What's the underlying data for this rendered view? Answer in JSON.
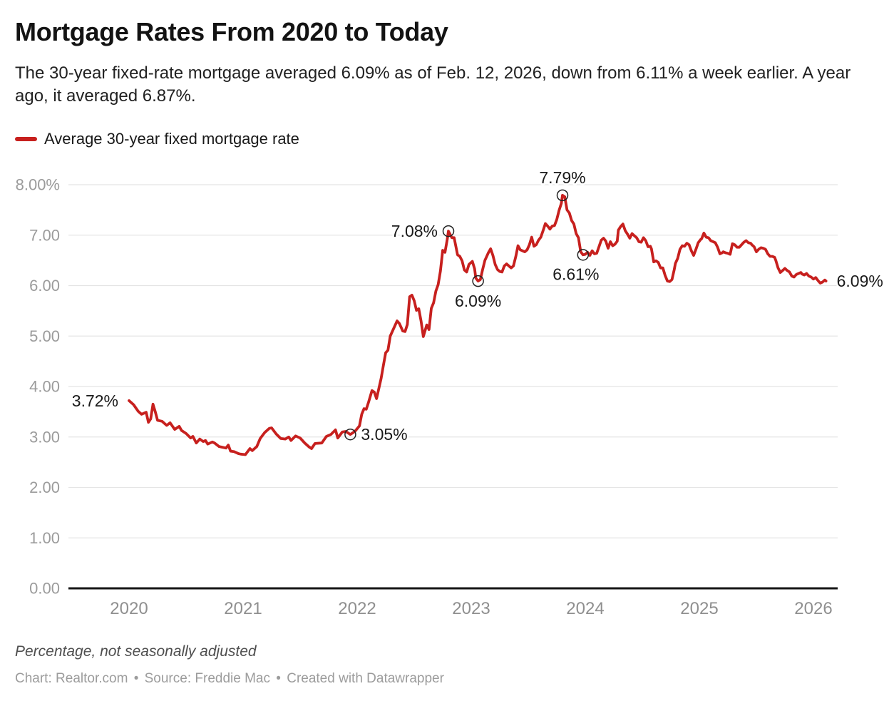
{
  "header": {
    "title": "Mortgage Rates From 2020 to Today",
    "subtitle": "The 30-year fixed-rate mortgage averaged 6.09% as of Feb. 12, 2026, down from 6.11% a week earlier. A year ago, it averaged 6.87%."
  },
  "legend": {
    "label": "Average 30-year fixed mortgage rate",
    "color": "#c7201e"
  },
  "footer": {
    "note": "Percentage, not seasonally adjusted",
    "credit": {
      "chart_label": "Chart:",
      "chart_source": "Realtor.com",
      "separator": "•",
      "source_label": "Source:",
      "source_name": "Freddie Mac",
      "created_label": "Created with",
      "tool_name": "Datawrapper"
    }
  },
  "chart_data": {
    "type": "line",
    "title": "Mortgage Rates From 2020 to Today",
    "xlabel": "",
    "ylabel": "Percentage, not seasonally adjusted",
    "ylim": [
      0,
      8
    ],
    "xlim": [
      2019.47,
      2026.21
    ],
    "grid": true,
    "legend_position": "top-left",
    "line_color": "#c7201e",
    "grid_color": "#e4e4e4",
    "axis_label_color": "#9b9b9b",
    "y_ticks": [
      {
        "v": 8,
        "label": "8.00%"
      },
      {
        "v": 7,
        "label": "7.00"
      },
      {
        "v": 6,
        "label": "6.00"
      },
      {
        "v": 5,
        "label": "5.00"
      },
      {
        "v": 4,
        "label": "4.00"
      },
      {
        "v": 3,
        "label": "3.00"
      },
      {
        "v": 2,
        "label": "2.00"
      },
      {
        "v": 1,
        "label": "1.00"
      },
      {
        "v": 0,
        "label": "0.00"
      }
    ],
    "x_ticks": [
      {
        "v": 2020,
        "label": "2020"
      },
      {
        "v": 2021,
        "label": "2021"
      },
      {
        "v": 2022,
        "label": "2022"
      },
      {
        "v": 2023,
        "label": "2023"
      },
      {
        "v": 2024,
        "label": "2024"
      },
      {
        "v": 2025,
        "label": "2025"
      },
      {
        "v": 2026,
        "label": "2026"
      }
    ],
    "annotations": [
      {
        "t": 2020.0,
        "v": 3.72,
        "label": "3.72%",
        "placement": "left",
        "circle": false
      },
      {
        "t": 2021.94,
        "v": 3.05,
        "label": "3.05%",
        "placement": "right",
        "circle": true
      },
      {
        "t": 2022.8,
        "v": 7.08,
        "label": "7.08%",
        "placement": "left",
        "circle": true
      },
      {
        "t": 2023.06,
        "v": 6.09,
        "label": "6.09%",
        "placement": "below",
        "circle": true
      },
      {
        "t": 2023.8,
        "v": 7.79,
        "label": "7.79%",
        "placement": "above",
        "circle": true
      },
      {
        "t": 2023.98,
        "v": 6.61,
        "label": "6.61%",
        "placement": "below-left",
        "circle": true
      },
      {
        "t": 2026.11,
        "v": 6.09,
        "label": "6.09%",
        "placement": "right",
        "circle": false
      }
    ],
    "series": [
      {
        "name": "Average 30-year fixed mortgage rate",
        "color": "#c7201e",
        "points": [
          [
            2020.0,
            3.72
          ],
          [
            2020.04,
            3.64
          ],
          [
            2020.08,
            3.51
          ],
          [
            2020.11,
            3.45
          ],
          [
            2020.15,
            3.49
          ],
          [
            2020.17,
            3.29
          ],
          [
            2020.19,
            3.36
          ],
          [
            2020.21,
            3.65
          ],
          [
            2020.23,
            3.5
          ],
          [
            2020.25,
            3.33
          ],
          [
            2020.29,
            3.31
          ],
          [
            2020.33,
            3.23
          ],
          [
            2020.36,
            3.28
          ],
          [
            2020.4,
            3.15
          ],
          [
            2020.44,
            3.21
          ],
          [
            2020.46,
            3.13
          ],
          [
            2020.5,
            3.07
          ],
          [
            2020.54,
            2.98
          ],
          [
            2020.56,
            3.01
          ],
          [
            2020.59,
            2.88
          ],
          [
            2020.62,
            2.96
          ],
          [
            2020.65,
            2.91
          ],
          [
            2020.67,
            2.93
          ],
          [
            2020.69,
            2.86
          ],
          [
            2020.73,
            2.9
          ],
          [
            2020.75,
            2.88
          ],
          [
            2020.79,
            2.81
          ],
          [
            2020.81,
            2.8
          ],
          [
            2020.85,
            2.78
          ],
          [
            2020.87,
            2.84
          ],
          [
            2020.89,
            2.72
          ],
          [
            2020.92,
            2.71
          ],
          [
            2020.96,
            2.67
          ],
          [
            2020.98,
            2.66
          ],
          [
            2021.02,
            2.65
          ],
          [
            2021.06,
            2.77
          ],
          [
            2021.08,
            2.73
          ],
          [
            2021.12,
            2.81
          ],
          [
            2021.15,
            2.97
          ],
          [
            2021.19,
            3.09
          ],
          [
            2021.23,
            3.17
          ],
          [
            2021.25,
            3.18
          ],
          [
            2021.29,
            3.06
          ],
          [
            2021.33,
            2.97
          ],
          [
            2021.37,
            2.96
          ],
          [
            2021.4,
            3.0
          ],
          [
            2021.42,
            2.93
          ],
          [
            2021.46,
            3.02
          ],
          [
            2021.5,
            2.98
          ],
          [
            2021.54,
            2.88
          ],
          [
            2021.58,
            2.8
          ],
          [
            2021.6,
            2.77
          ],
          [
            2021.63,
            2.87
          ],
          [
            2021.69,
            2.88
          ],
          [
            2021.73,
            3.01
          ],
          [
            2021.77,
            3.05
          ],
          [
            2021.81,
            3.14
          ],
          [
            2021.83,
            2.98
          ],
          [
            2021.87,
            3.1
          ],
          [
            2021.9,
            3.11
          ],
          [
            2021.94,
            3.05
          ],
          [
            2021.98,
            3.11
          ],
          [
            2022.02,
            3.22
          ],
          [
            2022.04,
            3.45
          ],
          [
            2022.06,
            3.56
          ],
          [
            2022.08,
            3.55
          ],
          [
            2022.1,
            3.69
          ],
          [
            2022.13,
            3.92
          ],
          [
            2022.15,
            3.89
          ],
          [
            2022.17,
            3.76
          ],
          [
            2022.21,
            4.16
          ],
          [
            2022.23,
            4.42
          ],
          [
            2022.25,
            4.67
          ],
          [
            2022.27,
            4.72
          ],
          [
            2022.29,
            5.0
          ],
          [
            2022.31,
            5.1
          ],
          [
            2022.35,
            5.3
          ],
          [
            2022.37,
            5.25
          ],
          [
            2022.4,
            5.1
          ],
          [
            2022.42,
            5.09
          ],
          [
            2022.44,
            5.23
          ],
          [
            2022.46,
            5.78
          ],
          [
            2022.48,
            5.81
          ],
          [
            2022.5,
            5.7
          ],
          [
            2022.52,
            5.51
          ],
          [
            2022.54,
            5.54
          ],
          [
            2022.56,
            5.3
          ],
          [
            2022.58,
            4.99
          ],
          [
            2022.61,
            5.22
          ],
          [
            2022.63,
            5.13
          ],
          [
            2022.65,
            5.55
          ],
          [
            2022.67,
            5.66
          ],
          [
            2022.69,
            5.89
          ],
          [
            2022.71,
            6.02
          ],
          [
            2022.73,
            6.29
          ],
          [
            2022.75,
            6.7
          ],
          [
            2022.77,
            6.66
          ],
          [
            2022.79,
            6.92
          ],
          [
            2022.8,
            7.08
          ],
          [
            2022.83,
            6.95
          ],
          [
            2022.85,
            6.95
          ],
          [
            2022.88,
            6.61
          ],
          [
            2022.9,
            6.58
          ],
          [
            2022.92,
            6.49
          ],
          [
            2022.94,
            6.31
          ],
          [
            2022.96,
            6.27
          ],
          [
            2022.98,
            6.42
          ],
          [
            2023.01,
            6.48
          ],
          [
            2023.03,
            6.33
          ],
          [
            2023.04,
            6.15
          ],
          [
            2023.06,
            6.09
          ],
          [
            2023.08,
            6.12
          ],
          [
            2023.1,
            6.32
          ],
          [
            2023.12,
            6.5
          ],
          [
            2023.15,
            6.65
          ],
          [
            2023.17,
            6.73
          ],
          [
            2023.19,
            6.6
          ],
          [
            2023.21,
            6.42
          ],
          [
            2023.23,
            6.32
          ],
          [
            2023.25,
            6.28
          ],
          [
            2023.27,
            6.27
          ],
          [
            2023.29,
            6.39
          ],
          [
            2023.31,
            6.43
          ],
          [
            2023.33,
            6.39
          ],
          [
            2023.35,
            6.35
          ],
          [
            2023.37,
            6.39
          ],
          [
            2023.39,
            6.57
          ],
          [
            2023.41,
            6.79
          ],
          [
            2023.43,
            6.71
          ],
          [
            2023.45,
            6.69
          ],
          [
            2023.47,
            6.67
          ],
          [
            2023.49,
            6.71
          ],
          [
            2023.51,
            6.81
          ],
          [
            2023.53,
            6.96
          ],
          [
            2023.55,
            6.78
          ],
          [
            2023.57,
            6.81
          ],
          [
            2023.59,
            6.9
          ],
          [
            2023.61,
            6.96
          ],
          [
            2023.63,
            7.09
          ],
          [
            2023.65,
            7.23
          ],
          [
            2023.67,
            7.18
          ],
          [
            2023.69,
            7.12
          ],
          [
            2023.71,
            7.18
          ],
          [
            2023.73,
            7.19
          ],
          [
            2023.75,
            7.31
          ],
          [
            2023.77,
            7.49
          ],
          [
            2023.79,
            7.63
          ],
          [
            2023.8,
            7.79
          ],
          [
            2023.82,
            7.76
          ],
          [
            2023.84,
            7.5
          ],
          [
            2023.86,
            7.44
          ],
          [
            2023.88,
            7.29
          ],
          [
            2023.9,
            7.22
          ],
          [
            2023.92,
            7.03
          ],
          [
            2023.94,
            6.95
          ],
          [
            2023.96,
            6.67
          ],
          [
            2023.98,
            6.61
          ],
          [
            2024.0,
            6.62
          ],
          [
            2024.02,
            6.66
          ],
          [
            2024.04,
            6.6
          ],
          [
            2024.06,
            6.69
          ],
          [
            2024.08,
            6.63
          ],
          [
            2024.1,
            6.64
          ],
          [
            2024.12,
            6.77
          ],
          [
            2024.14,
            6.9
          ],
          [
            2024.16,
            6.94
          ],
          [
            2024.18,
            6.88
          ],
          [
            2024.2,
            6.74
          ],
          [
            2024.22,
            6.87
          ],
          [
            2024.24,
            6.79
          ],
          [
            2024.26,
            6.82
          ],
          [
            2024.28,
            6.88
          ],
          [
            2024.29,
            7.1
          ],
          [
            2024.31,
            7.17
          ],
          [
            2024.33,
            7.22
          ],
          [
            2024.35,
            7.09
          ],
          [
            2024.37,
            7.02
          ],
          [
            2024.39,
            6.94
          ],
          [
            2024.41,
            7.03
          ],
          [
            2024.43,
            6.99
          ],
          [
            2024.45,
            6.95
          ],
          [
            2024.47,
            6.87
          ],
          [
            2024.49,
            6.86
          ],
          [
            2024.51,
            6.95
          ],
          [
            2024.53,
            6.89
          ],
          [
            2024.55,
            6.77
          ],
          [
            2024.57,
            6.78
          ],
          [
            2024.58,
            6.73
          ],
          [
            2024.6,
            6.47
          ],
          [
            2024.62,
            6.49
          ],
          [
            2024.64,
            6.46
          ],
          [
            2024.66,
            6.35
          ],
          [
            2024.68,
            6.35
          ],
          [
            2024.7,
            6.2
          ],
          [
            2024.72,
            6.09
          ],
          [
            2024.74,
            6.08
          ],
          [
            2024.76,
            6.12
          ],
          [
            2024.78,
            6.32
          ],
          [
            2024.79,
            6.44
          ],
          [
            2024.81,
            6.54
          ],
          [
            2024.83,
            6.72
          ],
          [
            2024.85,
            6.79
          ],
          [
            2024.87,
            6.78
          ],
          [
            2024.89,
            6.84
          ],
          [
            2024.91,
            6.81
          ],
          [
            2024.93,
            6.69
          ],
          [
            2024.95,
            6.6
          ],
          [
            2024.97,
            6.72
          ],
          [
            2024.99,
            6.85
          ],
          [
            2025.01,
            6.91
          ],
          [
            2025.02,
            6.93
          ],
          [
            2025.04,
            7.04
          ],
          [
            2025.06,
            6.96
          ],
          [
            2025.08,
            6.95
          ],
          [
            2025.1,
            6.89
          ],
          [
            2025.12,
            6.87
          ],
          [
            2025.14,
            6.85
          ],
          [
            2025.16,
            6.76
          ],
          [
            2025.18,
            6.63
          ],
          [
            2025.2,
            6.65
          ],
          [
            2025.21,
            6.67
          ],
          [
            2025.23,
            6.65
          ],
          [
            2025.25,
            6.64
          ],
          [
            2025.27,
            6.62
          ],
          [
            2025.29,
            6.83
          ],
          [
            2025.31,
            6.81
          ],
          [
            2025.33,
            6.76
          ],
          [
            2025.35,
            6.76
          ],
          [
            2025.37,
            6.81
          ],
          [
            2025.39,
            6.86
          ],
          [
            2025.41,
            6.89
          ],
          [
            2025.43,
            6.85
          ],
          [
            2025.45,
            6.84
          ],
          [
            2025.46,
            6.81
          ],
          [
            2025.48,
            6.77
          ],
          [
            2025.5,
            6.67
          ],
          [
            2025.52,
            6.72
          ],
          [
            2025.54,
            6.75
          ],
          [
            2025.56,
            6.74
          ],
          [
            2025.58,
            6.72
          ],
          [
            2025.6,
            6.63
          ],
          [
            2025.62,
            6.58
          ],
          [
            2025.64,
            6.58
          ],
          [
            2025.66,
            6.56
          ],
          [
            2025.67,
            6.5
          ],
          [
            2025.69,
            6.35
          ],
          [
            2025.71,
            6.26
          ],
          [
            2025.73,
            6.3
          ],
          [
            2025.75,
            6.34
          ],
          [
            2025.77,
            6.3
          ],
          [
            2025.79,
            6.27
          ],
          [
            2025.81,
            6.19
          ],
          [
            2025.83,
            6.17
          ],
          [
            2025.85,
            6.22
          ],
          [
            2025.87,
            6.24
          ],
          [
            2025.89,
            6.26
          ],
          [
            2025.9,
            6.23
          ],
          [
            2025.92,
            6.21
          ],
          [
            2025.94,
            6.24
          ],
          [
            2025.96,
            6.19
          ],
          [
            2025.98,
            6.17
          ],
          [
            2026.0,
            6.13
          ],
          [
            2026.02,
            6.16
          ],
          [
            2026.04,
            6.1
          ],
          [
            2026.06,
            6.05
          ],
          [
            2026.08,
            6.07
          ],
          [
            2026.1,
            6.11
          ],
          [
            2026.11,
            6.09
          ]
        ]
      }
    ]
  }
}
